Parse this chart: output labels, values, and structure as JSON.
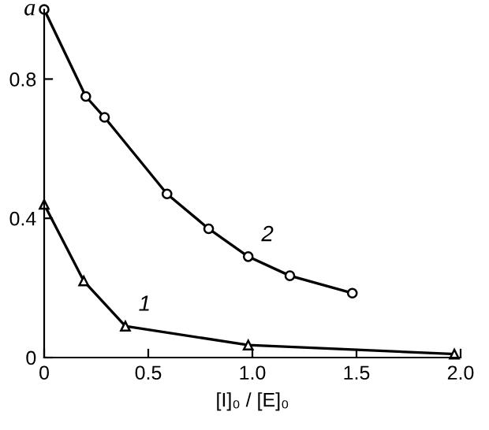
{
  "chart_data": {
    "type": "line",
    "xlabel": "[I]₀ / [E]₀",
    "ylabel": "a",
    "series": [
      {
        "color": "#000000",
        "marker": "triangle",
        "x": [
          0,
          0.19,
          0.39,
          0.98,
          1.97
        ],
        "values": [
          0.44,
          0.22,
          0.09,
          0.036,
          0.01
        ]
      },
      {
        "color": "#000000",
        "marker": "circle",
        "x": [
          0,
          0.2,
          0.29,
          0.59,
          0.79,
          0.98,
          1.18,
          1.48
        ],
        "values": [
          1.0,
          0.75,
          0.69,
          0.47,
          0.37,
          0.29,
          0.235,
          0.185
        ]
      }
    ],
    "annotations": [
      {
        "text": "1",
        "x": 0.39,
        "y": 0.09
      },
      {
        "text": "2",
        "x": 0.98,
        "y": 0.29
      }
    ],
    "xlim": [
      0,
      2.0
    ],
    "ylim": [
      0,
      1.0
    ],
    "xticks": [
      0,
      0.5,
      {
        "value": 1.0,
        "label": "1.0"
      },
      1.5,
      {
        "value": 2.0,
        "label": "2.0"
      }
    ],
    "yticks": [
      0,
      0.4,
      0.8
    ],
    "grid": false,
    "legend": false
  }
}
